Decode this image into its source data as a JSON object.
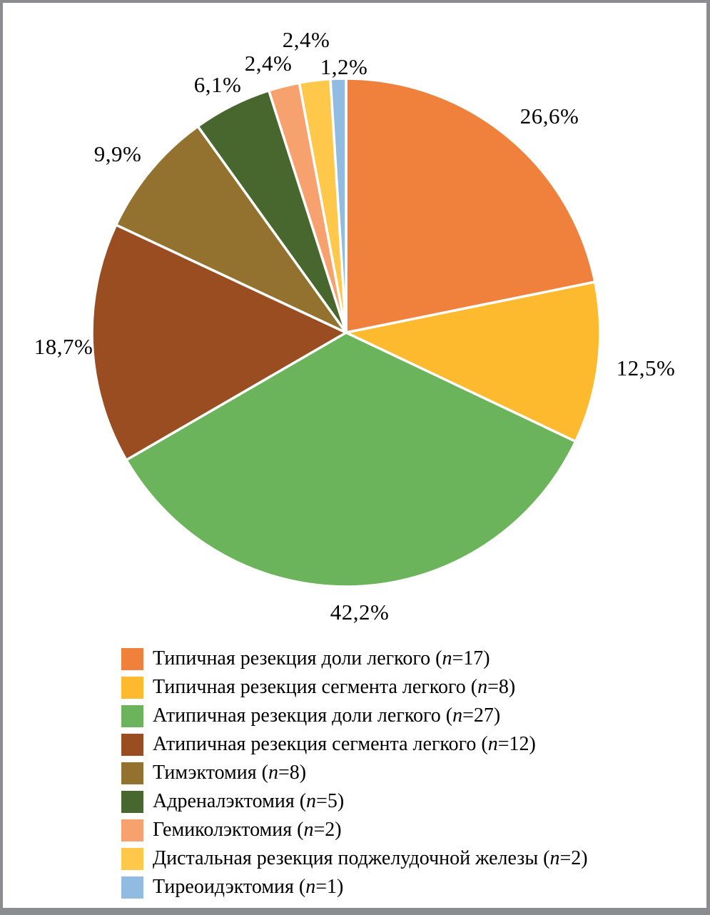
{
  "chart_data": {
    "type": "pie",
    "title": "",
    "legend_position": "bottom",
    "start_angle_deg": 0,
    "direction": "clockwise",
    "frame_color": "#8a8c90",
    "background_color": "#ffffff",
    "slice_gap_color": "#ffffff",
    "slices": [
      {
        "label": "Типичная резекция доли легкого",
        "n": 17,
        "pct": 26.6,
        "pct_label": "26,6%",
        "color": "#f0813c"
      },
      {
        "label": "Типичная резекция сегмента легкого",
        "n": 8,
        "pct": 12.5,
        "pct_label": "12,5%",
        "color": "#fdba2f"
      },
      {
        "label": "Атипичная резекция доли легкого",
        "n": 27,
        "pct": 42.2,
        "pct_label": "42,2%",
        "color": "#6cb45c"
      },
      {
        "label": "Атипичная резекция сегмента легкого",
        "n": 12,
        "pct": 18.7,
        "pct_label": "18,7%",
        "color": "#9a4d20"
      },
      {
        "label": "Тимэктомия",
        "n": 8,
        "pct": 9.9,
        "pct_label": "9,9%",
        "color": "#93722f"
      },
      {
        "label": "Адреналэктомия",
        "n": 5,
        "pct": 6.1,
        "pct_label": "6,1%",
        "color": "#47672f"
      },
      {
        "label": "Гемиколэктомия",
        "n": 2,
        "pct": 2.4,
        "pct_label": "2,4%",
        "color": "#f7a26e"
      },
      {
        "label": "Дистальная резекция поджелудочной железы",
        "n": 2,
        "pct": 2.4,
        "pct_label": "2,4%",
        "color": "#ffc84a"
      },
      {
        "label": "Тиреоидэктомия",
        "n": 1,
        "pct": 1.2,
        "pct_label": "1,2%",
        "color": "#92bbe2"
      }
    ]
  }
}
